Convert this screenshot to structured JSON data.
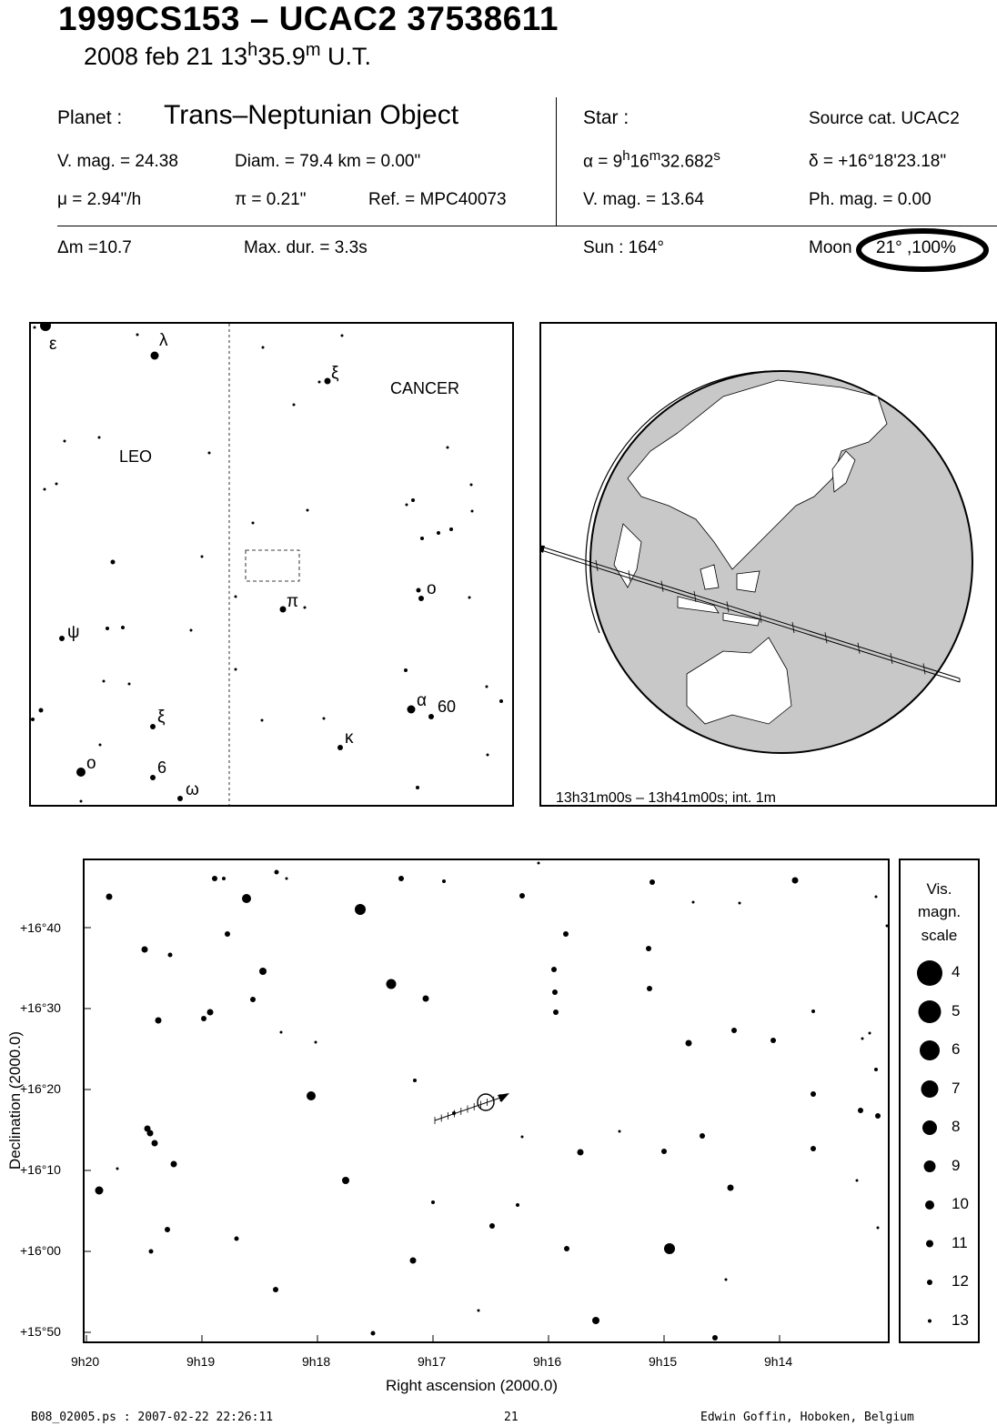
{
  "header": {
    "title": "1999CS153  –  UCAC2 37538611",
    "date": "2008 feb 21  13",
    "hour_sup": "h",
    "minutes": "35.9",
    "min_sup": "m",
    "time_suffix": " U.T."
  },
  "planet": {
    "label": "Planet :",
    "type": "Trans–Neptunian Object",
    "vmag": "V. mag. = 24.38",
    "diam": "Diam. = 79.4 km = 0.00\"",
    "mu": "μ =  2.94\"/h",
    "pi": "π =  0.21\"",
    "ref": "Ref. = MPC40073"
  },
  "star": {
    "label": "Star :",
    "source": "Source cat.  UCAC2",
    "alpha_prefix": "α =  9",
    "alpha_h": "h",
    "alpha_mid": "16",
    "alpha_m": "m",
    "alpha_sec": "32.682",
    "alpha_s": "s",
    "delta": "δ = +16°18'23.18\"",
    "vmag": "V. mag. = 13.64",
    "phmag": "Ph. mag. =  0.00"
  },
  "event": {
    "dm": "Δm =10.7",
    "maxdur": "Max. dur. = 3.3s",
    "sun": "Sun : 164°",
    "moon_label": "Moon",
    "moon_value": "21° ,100%"
  },
  "finder": {
    "constellations": [
      "LEO",
      "CANCER"
    ],
    "greek_labels": [
      "ε",
      "λ",
      "ξ",
      "ψ",
      "π",
      "ο",
      "α",
      "κ",
      "ξ",
      "ο",
      "ω"
    ],
    "number_labels": [
      "60",
      "6"
    ]
  },
  "globe": {
    "caption": "13h31m00s – 13h41m00s; int.  1m"
  },
  "chart": {
    "dec_ticks": [
      "+16°40",
      "+16°30",
      "+16°20",
      "+16°10",
      "+16°00",
      "+15°50"
    ],
    "ra_ticks": [
      "9h20",
      "9h19",
      "9h18",
      "9h17",
      "9h16",
      "9h15",
      "9h14"
    ],
    "xlabel": "Right ascension (2000.0)",
    "ylabel": "Declination (2000.0)"
  },
  "legend": {
    "title1": "Vis.",
    "title2": "magn.",
    "title3": "scale",
    "mags": [
      "4",
      "5",
      "6",
      "7",
      "8",
      "9",
      "10",
      "11",
      "12",
      "13"
    ]
  },
  "footer": {
    "file": "B08_02005.ps : 2007-02-22 22:26:11",
    "page": "21",
    "author": "Edwin Goffin, Hoboken, Belgium"
  }
}
